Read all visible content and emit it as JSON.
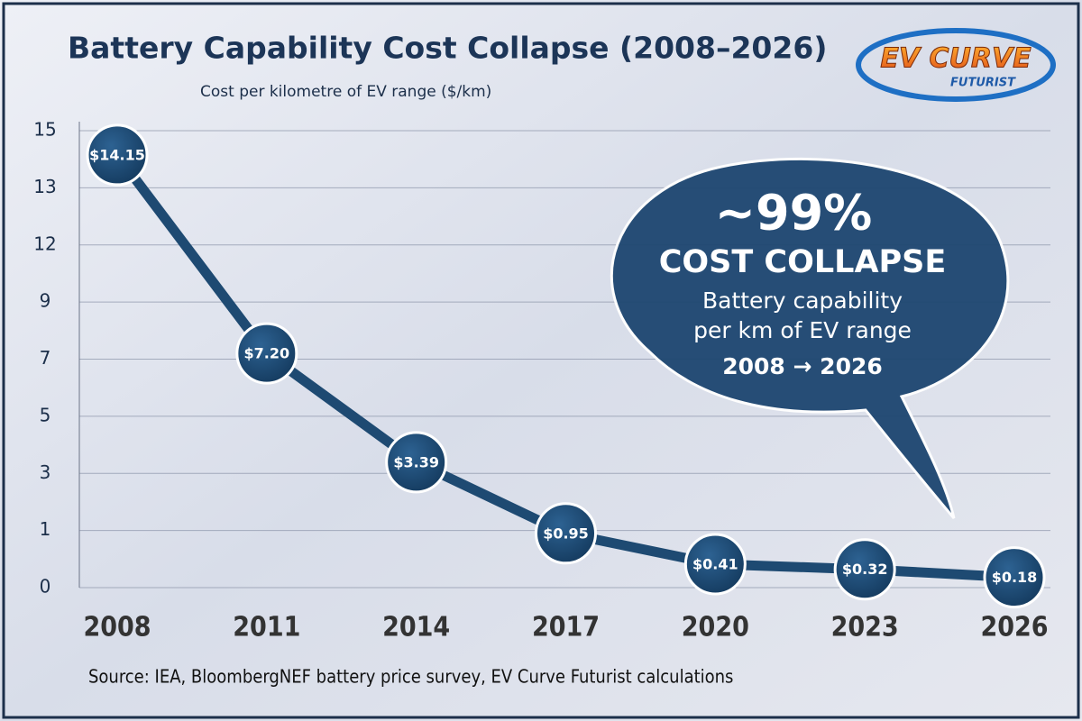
{
  "chart_data": {
    "type": "line",
    "title": "Battery Capability Cost Collapse (2008–2026)",
    "subtitle": "Cost per kilometre of EV range ($/km)",
    "source": "Source: IEA, BloombergNEF battery price survey, EV Curve Futurist calculations",
    "logo": {
      "main": "EV CURVE",
      "sub": "FUTURIST"
    },
    "annotation": {
      "headline": "~99%",
      "line1": "COST COLLAPSE",
      "line2": "Battery capability",
      "line3": "per km of EV range",
      "line4": "2008 → 2026"
    },
    "categories": [
      "2008",
      "2011",
      "2014",
      "2017",
      "2020",
      "2023",
      "2026"
    ],
    "series": [
      {
        "name": "Cost per km",
        "color": "#1e4a72",
        "values": [
          14.15,
          7.2,
          3.39,
          0.95,
          0.41,
          0.32,
          0.18
        ],
        "value_labels": [
          "$14.15",
          "$7.20",
          "$3.39",
          "$0.95",
          "$0.41",
          "$0.32",
          "$0.18"
        ]
      }
    ],
    "ylim": [
      0,
      15
    ],
    "yticks": [
      0,
      1,
      3,
      5,
      7,
      9,
      12,
      13,
      15
    ],
    "grid": true
  }
}
